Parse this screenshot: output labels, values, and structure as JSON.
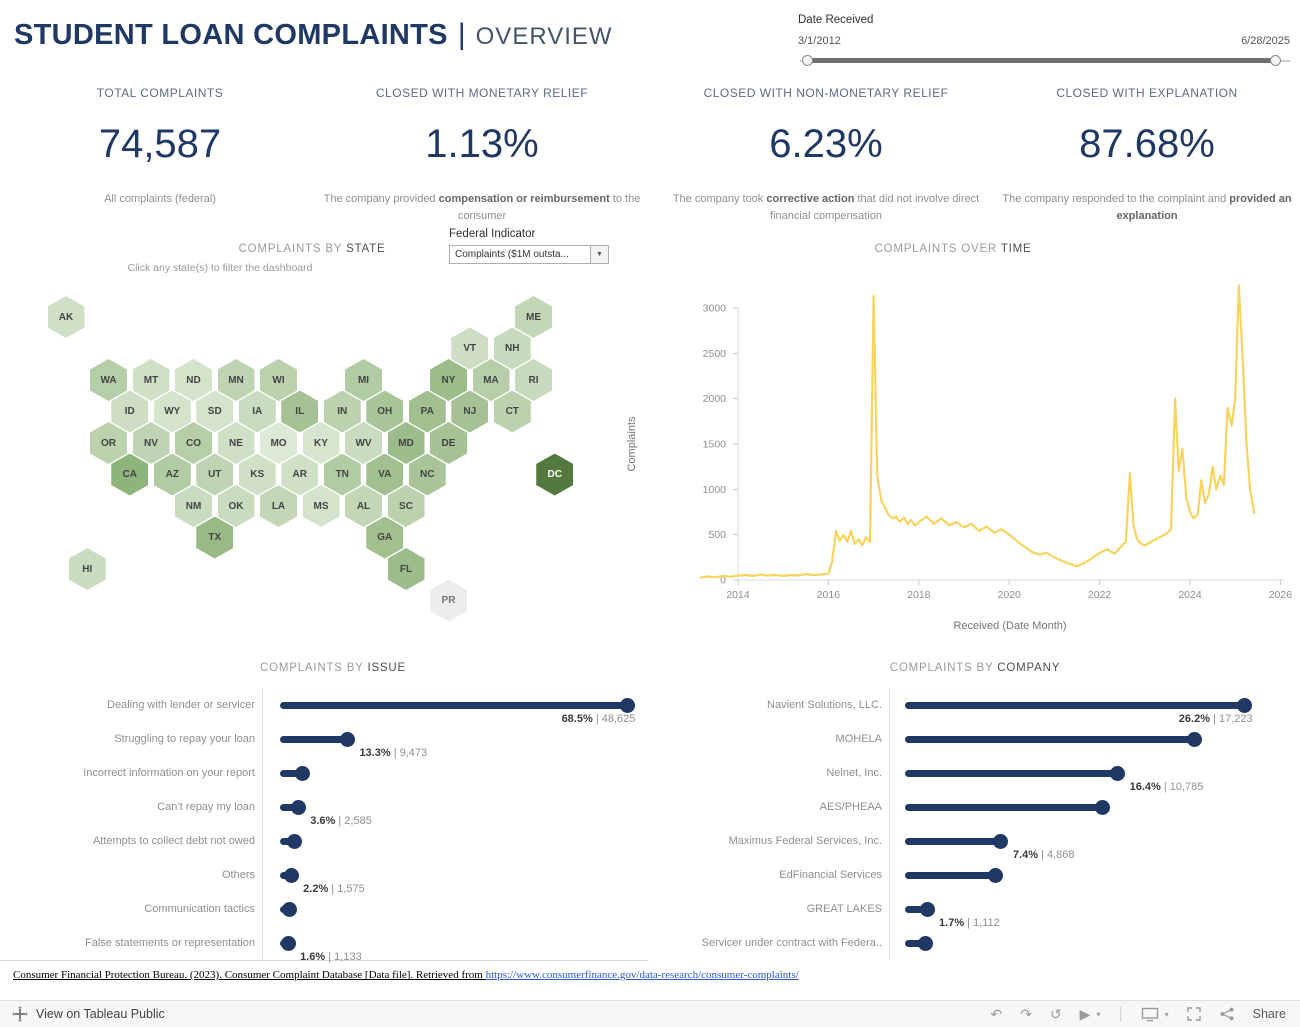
{
  "header": {
    "title": "STUDENT LOAN COMPLAINTS",
    "separator": "|",
    "subtitle": "OVERVIEW"
  },
  "date_filter": {
    "label": "Date Received",
    "start": "3/1/2012",
    "end": "6/28/2025"
  },
  "kpis": [
    {
      "label": "TOTAL COMPLAINTS",
      "value": "74,587",
      "desc_before": "All complaints (federal)",
      "desc_bold": "",
      "desc_after": ""
    },
    {
      "label": "CLOSED WITH MONETARY RELIEF",
      "value": "1.13%",
      "desc_before": "The company provided ",
      "desc_bold": "compensation or reimbursement",
      "desc_after": " to the consumer"
    },
    {
      "label": "CLOSED WITH NON-MONETARY RELIEF",
      "value": "6.23%",
      "desc_before": "The company took ",
      "desc_bold": "corrective action",
      "desc_after": " that did not involve direct financial compensation"
    },
    {
      "label": "CLOSED WITH EXPLANATION",
      "value": "87.68%",
      "desc_before": "The company responded to the complaint and ",
      "desc_bold": "provided an explanation",
      "desc_after": ""
    }
  ],
  "state_map": {
    "title_prefix": "COMPLAINTS BY ",
    "title_main": "STATE",
    "subtitle": "Click any state(s) to filter the dashboard",
    "filter_label": "Federal Indicator",
    "filter_value": "Complaints ($1M outsta...",
    "states": [
      {
        "abbr": "AK",
        "c": 0,
        "r": 0,
        "color": "#cfe0c6"
      },
      {
        "abbr": "ME",
        "c": 22,
        "r": 0,
        "color": "#c3d7b7"
      },
      {
        "abbr": "VT",
        "c": 19,
        "r": 1,
        "color": "#cddec4"
      },
      {
        "abbr": "NH",
        "c": 21,
        "r": 1,
        "color": "#c7dabd"
      },
      {
        "abbr": "WA",
        "c": 2,
        "r": 2,
        "color": "#b5cea7"
      },
      {
        "abbr": "MT",
        "c": 4,
        "r": 2,
        "color": "#d0e0c7"
      },
      {
        "abbr": "ND",
        "c": 6,
        "r": 2,
        "color": "#d4e3cb"
      },
      {
        "abbr": "MN",
        "c": 8,
        "r": 2,
        "color": "#bfd4b2"
      },
      {
        "abbr": "WI",
        "c": 10,
        "r": 2,
        "color": "#bcd2ae"
      },
      {
        "abbr": "MI",
        "c": 14,
        "r": 2,
        "color": "#b1cba2"
      },
      {
        "abbr": "NY",
        "c": 18,
        "r": 2,
        "color": "#9cbd8b"
      },
      {
        "abbr": "MA",
        "c": 20,
        "r": 2,
        "color": "#b5cea7"
      },
      {
        "abbr": "RI",
        "c": 22,
        "r": 2,
        "color": "#c7dabd"
      },
      {
        "abbr": "ID",
        "c": 3,
        "r": 3,
        "color": "#cddec4"
      },
      {
        "abbr": "WY",
        "c": 5,
        "r": 3,
        "color": "#d4e3cb"
      },
      {
        "abbr": "SD",
        "c": 7,
        "r": 3,
        "color": "#d4e3cb"
      },
      {
        "abbr": "IA",
        "c": 9,
        "r": 3,
        "color": "#c9dcbf"
      },
      {
        "abbr": "IL",
        "c": 11,
        "r": 3,
        "color": "#a6c295"
      },
      {
        "abbr": "IN",
        "c": 13,
        "r": 3,
        "color": "#bcd2ae"
      },
      {
        "abbr": "OH",
        "c": 15,
        "r": 3,
        "color": "#a9c598"
      },
      {
        "abbr": "PA",
        "c": 17,
        "r": 3,
        "color": "#a1bf8f"
      },
      {
        "abbr": "NJ",
        "c": 19,
        "r": 3,
        "color": "#a6c295"
      },
      {
        "abbr": "CT",
        "c": 21,
        "r": 3,
        "color": "#bcd2ae"
      },
      {
        "abbr": "OR",
        "c": 2,
        "r": 4,
        "color": "#bcd2ae"
      },
      {
        "abbr": "NV",
        "c": 4,
        "r": 4,
        "color": "#bfd4b2"
      },
      {
        "abbr": "CO",
        "c": 6,
        "r": 4,
        "color": "#b5cea7"
      },
      {
        "abbr": "NE",
        "c": 8,
        "r": 4,
        "color": "#d0e0c7"
      },
      {
        "abbr": "MO",
        "c": 10,
        "r": 4,
        "color": "#dde9d6"
      },
      {
        "abbr": "KY",
        "c": 12,
        "r": 4,
        "color": "#d7e5cf"
      },
      {
        "abbr": "WV",
        "c": 14,
        "r": 4,
        "color": "#c9dcbf"
      },
      {
        "abbr": "MD",
        "c": 16,
        "r": 4,
        "color": "#9cbd8b"
      },
      {
        "abbr": "DE",
        "c": 18,
        "r": 4,
        "color": "#a6c295"
      },
      {
        "abbr": "CA",
        "c": 3,
        "r": 5,
        "color": "#8db47a"
      },
      {
        "abbr": "AZ",
        "c": 5,
        "r": 5,
        "color": "#b1cba2"
      },
      {
        "abbr": "UT",
        "c": 7,
        "r": 5,
        "color": "#bfd4b2"
      },
      {
        "abbr": "KS",
        "c": 9,
        "r": 5,
        "color": "#d0e0c7"
      },
      {
        "abbr": "AR",
        "c": 11,
        "r": 5,
        "color": "#d0e0c7"
      },
      {
        "abbr": "TN",
        "c": 13,
        "r": 5,
        "color": "#b1cba2"
      },
      {
        "abbr": "VA",
        "c": 15,
        "r": 5,
        "color": "#a1bf8f"
      },
      {
        "abbr": "NC",
        "c": 17,
        "r": 5,
        "color": "#a9c598"
      },
      {
        "abbr": "DC",
        "c": 23,
        "r": 5,
        "color": "#53793f",
        "dark": true
      },
      {
        "abbr": "NM",
        "c": 6,
        "r": 6,
        "color": "#c9dcbf"
      },
      {
        "abbr": "OK",
        "c": 8,
        "r": 6,
        "color": "#c9dcbf"
      },
      {
        "abbr": "LA",
        "c": 10,
        "r": 6,
        "color": "#c3d7b7"
      },
      {
        "abbr": "MS",
        "c": 12,
        "r": 6,
        "color": "#d4e3cb"
      },
      {
        "abbr": "AL",
        "c": 14,
        "r": 6,
        "color": "#c3d7b7"
      },
      {
        "abbr": "SC",
        "c": 16,
        "r": 6,
        "color": "#bcd2ae"
      },
      {
        "abbr": "TX",
        "c": 7,
        "r": 7,
        "color": "#98ba86"
      },
      {
        "abbr": "GA",
        "c": 15,
        "r": 7,
        "color": "#a1bf8f"
      },
      {
        "abbr": "HI",
        "c": 1,
        "r": 8,
        "color": "#c9dcbf"
      },
      {
        "abbr": "FL",
        "c": 16,
        "r": 8,
        "color": "#9cbd8b"
      },
      {
        "abbr": "PR",
        "c": 18,
        "r": 9,
        "color": "#ededed"
      }
    ]
  },
  "chart_data": [
    {
      "type": "line",
      "title_prefix": "COMPLAINTS OVER ",
      "title_main": "TIME",
      "xlabel": "Received (Date Month)",
      "ylabel": "Complaints",
      "color": "#f7d45f",
      "x_ticks": [
        2014,
        2016,
        2018,
        2020,
        2022,
        2024,
        2026
      ],
      "y_ticks": [
        0,
        500,
        1000,
        1500,
        2000,
        2500,
        3000
      ],
      "ylim": [
        0,
        3300
      ],
      "points": [
        [
          2013.17,
          25
        ],
        [
          2013.33,
          40
        ],
        [
          2013.5,
          30
        ],
        [
          2013.67,
          45
        ],
        [
          2013.83,
          35
        ],
        [
          2014.0,
          50
        ],
        [
          2014.17,
          55
        ],
        [
          2014.33,
          45
        ],
        [
          2014.5,
          60
        ],
        [
          2014.67,
          50
        ],
        [
          2014.83,
          55
        ],
        [
          2015.0,
          45
        ],
        [
          2015.17,
          55
        ],
        [
          2015.33,
          50
        ],
        [
          2015.5,
          65
        ],
        [
          2015.67,
          55
        ],
        [
          2015.83,
          60
        ],
        [
          2016.0,
          70
        ],
        [
          2016.08,
          200
        ],
        [
          2016.17,
          540
        ],
        [
          2016.25,
          430
        ],
        [
          2016.33,
          500
        ],
        [
          2016.42,
          420
        ],
        [
          2016.5,
          540
        ],
        [
          2016.58,
          400
        ],
        [
          2016.67,
          450
        ],
        [
          2016.75,
          380
        ],
        [
          2016.83,
          470
        ],
        [
          2016.92,
          420
        ],
        [
          2017.0,
          3130
        ],
        [
          2017.08,
          1150
        ],
        [
          2017.17,
          880
        ],
        [
          2017.25,
          800
        ],
        [
          2017.33,
          720
        ],
        [
          2017.42,
          680
        ],
        [
          2017.5,
          700
        ],
        [
          2017.58,
          640
        ],
        [
          2017.67,
          690
        ],
        [
          2017.75,
          620
        ],
        [
          2017.83,
          660
        ],
        [
          2017.92,
          600
        ],
        [
          2018.0,
          640
        ],
        [
          2018.17,
          700
        ],
        [
          2018.33,
          620
        ],
        [
          2018.5,
          680
        ],
        [
          2018.67,
          600
        ],
        [
          2018.83,
          640
        ],
        [
          2019.0,
          580
        ],
        [
          2019.17,
          620
        ],
        [
          2019.33,
          540
        ],
        [
          2019.5,
          590
        ],
        [
          2019.67,
          520
        ],
        [
          2019.83,
          560
        ],
        [
          2020.0,
          500
        ],
        [
          2020.17,
          430
        ],
        [
          2020.33,
          370
        ],
        [
          2020.5,
          310
        ],
        [
          2020.67,
          280
        ],
        [
          2020.83,
          300
        ],
        [
          2021.0,
          250
        ],
        [
          2021.17,
          210
        ],
        [
          2021.33,
          180
        ],
        [
          2021.5,
          150
        ],
        [
          2021.67,
          190
        ],
        [
          2021.83,
          240
        ],
        [
          2022.0,
          300
        ],
        [
          2022.17,
          340
        ],
        [
          2022.33,
          290
        ],
        [
          2022.5,
          380
        ],
        [
          2022.58,
          420
        ],
        [
          2022.67,
          1180
        ],
        [
          2022.75,
          600
        ],
        [
          2022.83,
          450
        ],
        [
          2022.92,
          400
        ],
        [
          2023.0,
          380
        ],
        [
          2023.17,
          430
        ],
        [
          2023.33,
          470
        ],
        [
          2023.5,
          520
        ],
        [
          2023.58,
          560
        ],
        [
          2023.67,
          2000
        ],
        [
          2023.75,
          1200
        ],
        [
          2023.83,
          1450
        ],
        [
          2023.92,
          900
        ],
        [
          2024.0,
          750
        ],
        [
          2024.08,
          680
        ],
        [
          2024.17,
          720
        ],
        [
          2024.25,
          1100
        ],
        [
          2024.33,
          850
        ],
        [
          2024.42,
          950
        ],
        [
          2024.5,
          1250
        ],
        [
          2024.58,
          1000
        ],
        [
          2024.67,
          1150
        ],
        [
          2024.75,
          1050
        ],
        [
          2024.83,
          1900
        ],
        [
          2024.92,
          1700
        ],
        [
          2025.0,
          2000
        ],
        [
          2025.08,
          3250
        ],
        [
          2025.17,
          2400
        ],
        [
          2025.25,
          1500
        ],
        [
          2025.33,
          1000
        ],
        [
          2025.42,
          740
        ]
      ]
    },
    {
      "type": "bar",
      "title_prefix": "COMPLAINTS BY ",
      "title_main": "ISSUE",
      "axis_max": 70,
      "bars": [
        {
          "label": "Dealing with lender or servicer",
          "pct": 68.5,
          "pct_label": "68.5%",
          "count_label": "48,625",
          "align": "end"
        },
        {
          "label": "Struggling to repay your loan",
          "pct": 13.3,
          "pct_label": "13.3%",
          "count_label": "9,473",
          "align": "after"
        },
        {
          "label": "Incorrect information on your report",
          "pct": 4.4,
          "pct_label": "",
          "count_label": "",
          "align": "after"
        },
        {
          "label": "Can’t repay my loan",
          "pct": 3.6,
          "pct_label": "3.6%",
          "count_label": "2,585",
          "align": "after"
        },
        {
          "label": "Attempts to collect debt not owed",
          "pct": 2.9,
          "pct_label": "",
          "count_label": "",
          "align": "after"
        },
        {
          "label": "Others",
          "pct": 2.2,
          "pct_label": "2.2%",
          "count_label": "1,575",
          "align": "after"
        },
        {
          "label": "Communication tactics",
          "pct": 1.9,
          "pct_label": "",
          "count_label": "",
          "align": "after"
        },
        {
          "label": "False statements or representation",
          "pct": 1.6,
          "pct_label": "1.6%",
          "count_label": "1,133",
          "align": "after"
        }
      ]
    },
    {
      "type": "bar",
      "title_prefix": "COMPLAINTS BY ",
      "title_main": "COMPANY",
      "axis_max": 27,
      "bars": [
        {
          "label": "Navient Solutions, LLC.",
          "pct": 26.2,
          "pct_label": "26.2%",
          "count_label": "17,223",
          "align": "end"
        },
        {
          "label": "MOHELA",
          "pct": 22.3,
          "pct_label": "",
          "count_label": "",
          "align": "after"
        },
        {
          "label": "Nelnet, Inc.",
          "pct": 16.4,
          "pct_label": "16.4%",
          "count_label": "10,785",
          "align": "after"
        },
        {
          "label": "AES/PHEAA",
          "pct": 15.2,
          "pct_label": "",
          "count_label": "",
          "align": "after"
        },
        {
          "label": "Maximus Federal Services, Inc.",
          "pct": 7.4,
          "pct_label": "7.4%",
          "count_label": "4,868",
          "align": "after"
        },
        {
          "label": "EdFinancial Services",
          "pct": 7.0,
          "pct_label": "",
          "count_label": "",
          "align": "after"
        },
        {
          "label": "GREAT LAKES",
          "pct": 1.7,
          "pct_label": "1.7%",
          "count_label": "1,112",
          "align": "after"
        },
        {
          "label": "Servicer under contract with Federa..",
          "pct": 1.6,
          "pct_label": "",
          "count_label": "",
          "align": "after"
        }
      ]
    }
  ],
  "footer": {
    "citation": "Consumer Financial Protection Bureau. (2023). Consumer Complaint Database [Data file]. Retrieved from ",
    "link": "https://www.consumerfinance.gov/data-research/consumer-complaints/"
  },
  "toolbar": {
    "view_label": "View on Tableau Public",
    "share_label": "Share"
  }
}
